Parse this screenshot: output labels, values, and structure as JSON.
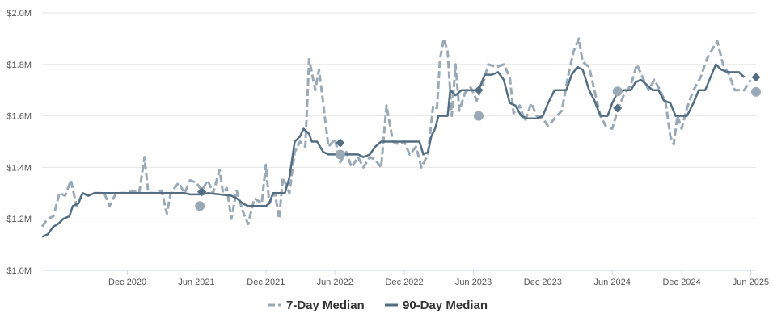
{
  "chart_data": {
    "type": "line",
    "title": "",
    "xlabel": "",
    "ylabel": "",
    "ylim": [
      1000000,
      2000000
    ],
    "xlim": [
      "2020-04-20",
      "2025-06-15"
    ],
    "y_ticks": [
      {
        "value": 1000000,
        "label": "$1.0M"
      },
      {
        "value": 1200000,
        "label": "$1.2M"
      },
      {
        "value": 1400000,
        "label": "$1.4M"
      },
      {
        "value": 1600000,
        "label": "$1.6M"
      },
      {
        "value": 1800000,
        "label": "$1.8M"
      },
      {
        "value": 2000000,
        "label": "$2.0M"
      }
    ],
    "x_ticks": [
      {
        "date": "2020-12-01",
        "label": "Dec 2020"
      },
      {
        "date": "2021-06-01",
        "label": "Jun 2021"
      },
      {
        "date": "2021-12-01",
        "label": "Dec 2021"
      },
      {
        "date": "2022-06-01",
        "label": "Jun 2022"
      },
      {
        "date": "2022-12-01",
        "label": "Dec 2022"
      },
      {
        "date": "2023-06-01",
        "label": "Jun 2023"
      },
      {
        "date": "2023-12-01",
        "label": "Dec 2023"
      },
      {
        "date": "2024-06-01",
        "label": "Jun 2024"
      },
      {
        "date": "2024-12-01",
        "label": "Dec 2024"
      },
      {
        "date": "2025-06-01",
        "label": "Jun 2025"
      }
    ],
    "grid": true,
    "legend_position": "bottom-center",
    "series": [
      {
        "name": "7-Day Median",
        "color": "#9aa9b5",
        "style": "dashed",
        "points": [
          [
            "2020-04-20",
            1170000
          ],
          [
            "2020-05-05",
            1200000
          ],
          [
            "2020-05-20",
            1210000
          ],
          [
            "2020-06-05",
            1300000
          ],
          [
            "2020-06-20",
            1290000
          ],
          [
            "2020-07-05",
            1350000
          ],
          [
            "2020-07-20",
            1250000
          ],
          [
            "2020-08-05",
            1300000
          ],
          [
            "2020-08-20",
            1290000
          ],
          [
            "2020-09-05",
            1300000
          ],
          [
            "2020-10-01",
            1300000
          ],
          [
            "2020-10-15",
            1250000
          ],
          [
            "2020-11-01",
            1300000
          ],
          [
            "2020-12-01",
            1300000
          ],
          [
            "2020-12-15",
            1310000
          ],
          [
            "2021-01-01",
            1300000
          ],
          [
            "2021-01-15",
            1440000
          ],
          [
            "2021-01-25",
            1300000
          ],
          [
            "2021-02-15",
            1300000
          ],
          [
            "2021-03-01",
            1310000
          ],
          [
            "2021-03-15",
            1220000
          ],
          [
            "2021-03-25",
            1300000
          ],
          [
            "2021-04-15",
            1340000
          ],
          [
            "2021-05-01",
            1300000
          ],
          [
            "2021-05-15",
            1350000
          ],
          [
            "2021-06-01",
            1340000
          ],
          [
            "2021-06-15",
            1310000
          ],
          [
            "2021-07-01",
            1350000
          ],
          [
            "2021-07-15",
            1300000
          ],
          [
            "2021-08-01",
            1390000
          ],
          [
            "2021-08-10",
            1300000
          ],
          [
            "2021-08-20",
            1320000
          ],
          [
            "2021-09-01",
            1200000
          ],
          [
            "2021-09-15",
            1310000
          ],
          [
            "2021-10-01",
            1230000
          ],
          [
            "2021-10-15",
            1180000
          ],
          [
            "2021-11-01",
            1280000
          ],
          [
            "2021-11-20",
            1260000
          ],
          [
            "2021-12-01",
            1410000
          ],
          [
            "2021-12-10",
            1260000
          ],
          [
            "2021-12-25",
            1300000
          ],
          [
            "2022-01-05",
            1200000
          ],
          [
            "2022-01-15",
            1360000
          ],
          [
            "2022-02-01",
            1300000
          ],
          [
            "2022-02-15",
            1460000
          ],
          [
            "2022-03-01",
            1500000
          ],
          [
            "2022-03-15",
            1480000
          ],
          [
            "2022-03-25",
            1820000
          ],
          [
            "2022-04-01",
            1770000
          ],
          [
            "2022-04-10",
            1700000
          ],
          [
            "2022-04-20",
            1780000
          ],
          [
            "2022-05-01",
            1650000
          ],
          [
            "2022-05-15",
            1480000
          ],
          [
            "2022-06-01",
            1510000
          ],
          [
            "2022-06-15",
            1420000
          ],
          [
            "2022-07-01",
            1460000
          ],
          [
            "2022-07-15",
            1400000
          ],
          [
            "2022-08-01",
            1440000
          ],
          [
            "2022-08-15",
            1400000
          ],
          [
            "2022-09-01",
            1440000
          ],
          [
            "2022-09-15",
            1430000
          ],
          [
            "2022-10-01",
            1400000
          ],
          [
            "2022-10-15",
            1640000
          ],
          [
            "2022-11-01",
            1500000
          ],
          [
            "2022-11-15",
            1490000
          ],
          [
            "2022-12-01",
            1500000
          ],
          [
            "2022-12-15",
            1450000
          ],
          [
            "2023-01-01",
            1480000
          ],
          [
            "2023-01-15",
            1400000
          ],
          [
            "2023-02-01",
            1450000
          ],
          [
            "2023-02-15",
            1640000
          ],
          [
            "2023-02-25",
            1630000
          ],
          [
            "2023-03-05",
            1820000
          ],
          [
            "2023-03-15",
            1900000
          ],
          [
            "2023-03-25",
            1850000
          ],
          [
            "2023-04-05",
            1600000
          ],
          [
            "2023-04-15",
            1800000
          ],
          [
            "2023-04-25",
            1620000
          ],
          [
            "2023-05-10",
            1690000
          ],
          [
            "2023-05-25",
            1710000
          ],
          [
            "2023-06-10",
            1660000
          ],
          [
            "2023-06-25",
            1720000
          ],
          [
            "2023-07-10",
            1800000
          ],
          [
            "2023-08-01",
            1790000
          ],
          [
            "2023-08-20",
            1800000
          ],
          [
            "2023-09-05",
            1750000
          ],
          [
            "2023-09-15",
            1610000
          ],
          [
            "2023-10-01",
            1640000
          ],
          [
            "2023-10-15",
            1580000
          ],
          [
            "2023-11-01",
            1650000
          ],
          [
            "2023-11-15",
            1600000
          ],
          [
            "2023-12-01",
            1590000
          ],
          [
            "2023-12-15",
            1560000
          ],
          [
            "2024-01-01",
            1590000
          ],
          [
            "2024-01-20",
            1620000
          ],
          [
            "2024-02-05",
            1750000
          ],
          [
            "2024-02-20",
            1850000
          ],
          [
            "2024-03-05",
            1900000
          ],
          [
            "2024-03-15",
            1810000
          ],
          [
            "2024-04-01",
            1790000
          ],
          [
            "2024-04-15",
            1700000
          ],
          [
            "2024-05-01",
            1600000
          ],
          [
            "2024-05-15",
            1560000
          ],
          [
            "2024-06-01",
            1550000
          ],
          [
            "2024-06-15",
            1620000
          ],
          [
            "2024-07-01",
            1680000
          ],
          [
            "2024-07-20",
            1720000
          ],
          [
            "2024-08-05",
            1800000
          ],
          [
            "2024-08-20",
            1750000
          ],
          [
            "2024-09-05",
            1700000
          ],
          [
            "2024-09-20",
            1740000
          ],
          [
            "2024-10-05",
            1700000
          ],
          [
            "2024-10-20",
            1650000
          ],
          [
            "2024-11-01",
            1520000
          ],
          [
            "2024-11-10",
            1490000
          ],
          [
            "2024-11-20",
            1600000
          ],
          [
            "2024-12-01",
            1550000
          ],
          [
            "2024-12-15",
            1630000
          ],
          [
            "2025-01-01",
            1700000
          ],
          [
            "2025-01-20",
            1750000
          ],
          [
            "2025-02-05",
            1820000
          ],
          [
            "2025-02-20",
            1860000
          ],
          [
            "2025-03-05",
            1890000
          ],
          [
            "2025-03-20",
            1800000
          ],
          [
            "2025-04-05",
            1760000
          ],
          [
            "2025-04-20",
            1700000
          ],
          [
            "2025-05-15",
            1700000
          ],
          [
            "2025-06-01",
            1740000
          ]
        ]
      },
      {
        "name": "90-Day Median",
        "color": "#536e82",
        "style": "solid",
        "points": [
          [
            "2020-04-20",
            1130000
          ],
          [
            "2020-05-05",
            1140000
          ],
          [
            "2020-05-20",
            1170000
          ],
          [
            "2020-06-01",
            1180000
          ],
          [
            "2020-06-15",
            1200000
          ],
          [
            "2020-07-01",
            1210000
          ],
          [
            "2020-07-10",
            1250000
          ],
          [
            "2020-07-25",
            1260000
          ],
          [
            "2020-08-05",
            1300000
          ],
          [
            "2020-08-20",
            1290000
          ],
          [
            "2020-09-05",
            1300000
          ],
          [
            "2021-05-01",
            1300000
          ],
          [
            "2021-05-15",
            1295000
          ],
          [
            "2021-06-15",
            1295000
          ],
          [
            "2021-07-01",
            1300000
          ],
          [
            "2021-08-01",
            1295000
          ],
          [
            "2021-09-01",
            1290000
          ],
          [
            "2021-09-15",
            1280000
          ],
          [
            "2021-10-01",
            1260000
          ],
          [
            "2021-10-15",
            1250000
          ],
          [
            "2021-11-01",
            1250000
          ],
          [
            "2021-12-01",
            1250000
          ],
          [
            "2021-12-10",
            1260000
          ],
          [
            "2021-12-20",
            1300000
          ],
          [
            "2022-01-20",
            1300000
          ],
          [
            "2022-02-01",
            1360000
          ],
          [
            "2022-02-15",
            1500000
          ],
          [
            "2022-03-01",
            1520000
          ],
          [
            "2022-03-10",
            1550000
          ],
          [
            "2022-03-25",
            1530000
          ],
          [
            "2022-04-01",
            1500000
          ],
          [
            "2022-04-15",
            1500000
          ],
          [
            "2022-05-01",
            1460000
          ],
          [
            "2022-05-15",
            1450000
          ],
          [
            "2022-08-01",
            1450000
          ],
          [
            "2022-08-15",
            1440000
          ],
          [
            "2022-09-01",
            1450000
          ],
          [
            "2022-09-15",
            1480000
          ],
          [
            "2022-10-01",
            1500000
          ],
          [
            "2022-11-01",
            1500000
          ],
          [
            "2022-11-15",
            1500000
          ],
          [
            "2023-01-01",
            1500000
          ],
          [
            "2023-01-10",
            1500000
          ],
          [
            "2023-01-20",
            1450000
          ],
          [
            "2023-02-01",
            1460000
          ],
          [
            "2023-02-10",
            1520000
          ],
          [
            "2023-02-20",
            1550000
          ],
          [
            "2023-03-01",
            1600000
          ],
          [
            "2023-03-25",
            1600000
          ],
          [
            "2023-04-01",
            1700000
          ],
          [
            "2023-04-15",
            1680000
          ],
          [
            "2023-05-01",
            1700000
          ],
          [
            "2023-06-15",
            1700000
          ],
          [
            "2023-07-01",
            1760000
          ],
          [
            "2023-07-20",
            1760000
          ],
          [
            "2023-08-05",
            1770000
          ],
          [
            "2023-08-20",
            1740000
          ],
          [
            "2023-09-05",
            1650000
          ],
          [
            "2023-09-20",
            1640000
          ],
          [
            "2023-10-05",
            1600000
          ],
          [
            "2023-10-20",
            1590000
          ],
          [
            "2023-11-15",
            1590000
          ],
          [
            "2023-12-01",
            1600000
          ],
          [
            "2023-12-15",
            1650000
          ],
          [
            "2024-01-01",
            1700000
          ],
          [
            "2024-02-01",
            1700000
          ],
          [
            "2024-02-15",
            1760000
          ],
          [
            "2024-03-01",
            1790000
          ],
          [
            "2024-03-15",
            1780000
          ],
          [
            "2024-04-01",
            1700000
          ],
          [
            "2024-04-15",
            1660000
          ],
          [
            "2024-05-01",
            1600000
          ],
          [
            "2024-05-20",
            1600000
          ],
          [
            "2024-06-01",
            1650000
          ],
          [
            "2024-06-15",
            1690000
          ],
          [
            "2024-07-01",
            1700000
          ],
          [
            "2024-07-20",
            1700000
          ],
          [
            "2024-08-01",
            1730000
          ],
          [
            "2024-08-15",
            1740000
          ],
          [
            "2024-09-01",
            1720000
          ],
          [
            "2024-09-15",
            1700000
          ],
          [
            "2024-10-01",
            1700000
          ],
          [
            "2024-10-15",
            1660000
          ],
          [
            "2024-11-01",
            1650000
          ],
          [
            "2024-11-15",
            1600000
          ],
          [
            "2024-12-15",
            1600000
          ],
          [
            "2025-01-01",
            1650000
          ],
          [
            "2025-01-15",
            1700000
          ],
          [
            "2025-02-01",
            1700000
          ],
          [
            "2025-02-15",
            1750000
          ],
          [
            "2025-03-01",
            1800000
          ],
          [
            "2025-03-15",
            1780000
          ],
          [
            "2025-04-01",
            1770000
          ],
          [
            "2025-05-01",
            1770000
          ],
          [
            "2025-05-15",
            1750000
          ]
        ]
      }
    ],
    "markers": [
      {
        "series": "7-Day Median",
        "shape": "circle",
        "color": "#9aa9b5",
        "date": "2021-06-10",
        "value": 1250000
      },
      {
        "series": "90-Day Median",
        "shape": "diamond",
        "color": "#536e82",
        "date": "2021-06-15",
        "value": 1305000
      },
      {
        "series": "7-Day Median",
        "shape": "circle",
        "color": "#9aa9b5",
        "date": "2022-06-15",
        "value": 1450000
      },
      {
        "series": "90-Day Median",
        "shape": "diamond",
        "color": "#536e82",
        "date": "2022-06-15",
        "value": 1495000
      },
      {
        "series": "7-Day Median",
        "shape": "circle",
        "color": "#9aa9b5",
        "date": "2023-06-15",
        "value": 1600000
      },
      {
        "series": "90-Day Median",
        "shape": "diamond",
        "color": "#536e82",
        "date": "2023-06-15",
        "value": 1700000
      },
      {
        "series": "7-Day Median",
        "shape": "circle",
        "color": "#9aa9b5",
        "date": "2024-06-15",
        "value": 1695000
      },
      {
        "series": "90-Day Median",
        "shape": "diamond",
        "color": "#536e82",
        "date": "2024-06-15",
        "value": 1630000
      },
      {
        "series": "7-Day Median",
        "shape": "circle",
        "color": "#9aa9b5",
        "date": "2025-06-15",
        "value": 1693000
      },
      {
        "series": "90-Day Median",
        "shape": "diamond",
        "color": "#536e82",
        "date": "2025-06-15",
        "value": 1750000
      }
    ]
  },
  "legend": {
    "items": [
      {
        "label": "7-Day Median",
        "color": "#9aa9b5",
        "style": "dashed"
      },
      {
        "label": "90-Day Median",
        "color": "#536e82",
        "style": "solid"
      }
    ]
  }
}
